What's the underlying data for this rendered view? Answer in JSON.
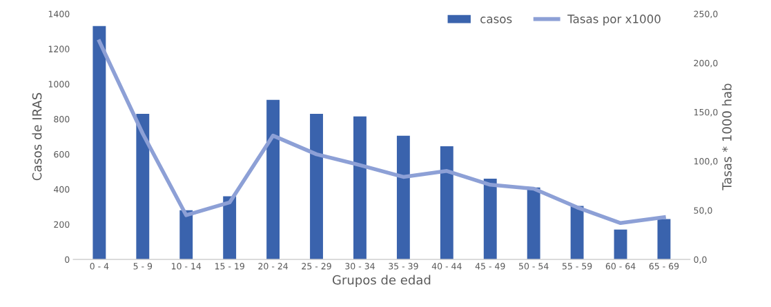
{
  "chart_data": {
    "type": "bar",
    "xlabel": "Grupos de edad",
    "ylabel": "Casos de IRAS",
    "y2label": "Tasas * 1000 hab",
    "categories": [
      "0 - 4",
      "5 - 9",
      "10 - 14",
      "15 - 19",
      "20 - 24",
      "25 - 29",
      "30 - 34",
      "35 - 39",
      "40 - 44",
      "45 - 49",
      "50 - 54",
      "55 - 59",
      "60 - 64",
      "65 - 69"
    ],
    "series": [
      {
        "name": "casos",
        "color": "#3a63ad",
        "values": [
          1330,
          830,
          280,
          360,
          910,
          830,
          815,
          705,
          645,
          460,
          410,
          305,
          170,
          230
        ]
      },
      {
        "name": "Tasas por x1000",
        "type": "line",
        "axis": "y2",
        "color": "#8da0d6",
        "values": [
          222,
          128,
          45,
          58,
          126,
          107,
          96,
          84,
          90,
          76,
          72,
          53,
          37,
          43
        ]
      }
    ],
    "ylim": [
      0,
      1400
    ],
    "yticks": [
      0,
      200,
      400,
      600,
      800,
      1000,
      1200,
      1400
    ],
    "y2lim": [
      0,
      250
    ],
    "y2ticks": [
      {
        "value": 0,
        "label": "0,0"
      },
      {
        "value": 50,
        "label": "50,0"
      },
      {
        "value": 100,
        "label": "100,0"
      },
      {
        "value": 150,
        "label": "150,0"
      },
      {
        "value": 200,
        "label": "200,0"
      },
      {
        "value": 250,
        "label": "250,0"
      }
    ],
    "grid": false,
    "legend": "top right",
    "marker": "none",
    "line_style": "solid"
  }
}
